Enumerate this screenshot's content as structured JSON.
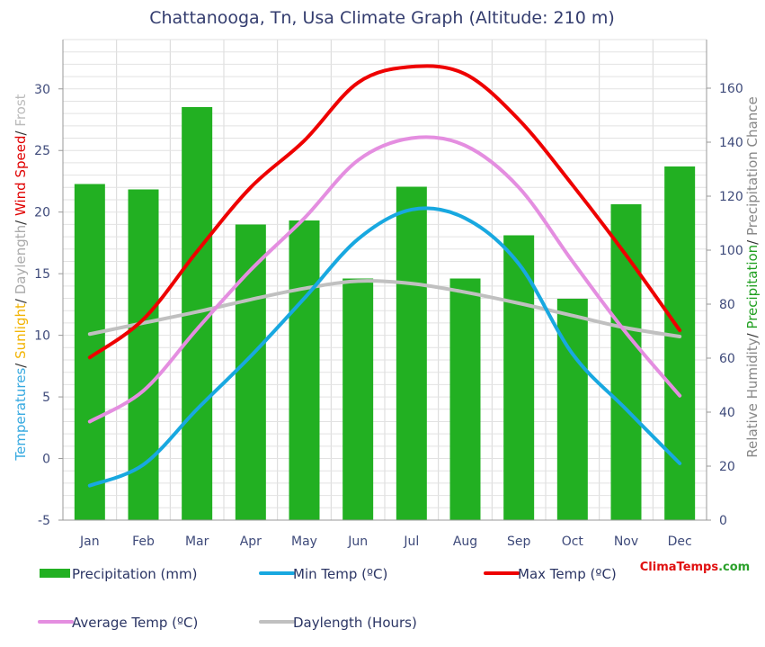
{
  "chart_data": {
    "type": "bar",
    "title": "Chattanooga, Tn, Usa Climate Graph (Altitude: 210 m)",
    "categories": [
      "Jan",
      "Feb",
      "Mar",
      "Apr",
      "May",
      "Jun",
      "Jul",
      "Aug",
      "Sep",
      "Oct",
      "Nov",
      "Dec"
    ],
    "left_axis": {
      "label_parts": [
        {
          "text": "Temperatures",
          "color": "#36a9e0"
        },
        {
          "text": "/ ",
          "color": "#333333"
        },
        {
          "text": "Sunlight",
          "color": "#f2b300"
        },
        {
          "text": "/ ",
          "color": "#333333"
        },
        {
          "text": "Daylength",
          "color": "#aaaaaa"
        },
        {
          "text": "/ ",
          "color": "#333333"
        },
        {
          "text": "Wind Speed",
          "color": "#e00000"
        },
        {
          "text": "/ ",
          "color": "#333333"
        },
        {
          "text": "Frost",
          "color": "#bbbbbb"
        }
      ],
      "ylim": [
        -5,
        34
      ],
      "ticks": [
        "-5",
        "0",
        "5",
        "10",
        "15",
        "20",
        "25",
        "30"
      ]
    },
    "right_axis": {
      "label_parts": [
        {
          "text": "Relative Humidity",
          "color": "#888888"
        },
        {
          "text": "/ ",
          "color": "#333333"
        },
        {
          "text": "Precipitation",
          "color": "#22a022"
        },
        {
          "text": "/ ",
          "color": "#333333"
        },
        {
          "text": "Precipitation Chance",
          "color": "#888888"
        }
      ],
      "ylim": [
        0,
        178
      ],
      "ticks": [
        "0",
        "20",
        "40",
        "60",
        "80",
        "100",
        "120",
        "140",
        "160"
      ]
    },
    "series": [
      {
        "name": "Precipitation (mm)",
        "kind": "bar",
        "axis": "right",
        "color": "#22b022",
        "values": [
          124.5,
          122.5,
          153,
          109.5,
          111,
          89.5,
          123.5,
          89.5,
          105.5,
          82,
          117,
          131
        ]
      },
      {
        "name": "Min Temp (ºC)",
        "kind": "line",
        "axis": "left",
        "color": "#18a8e0",
        "values": [
          -2.2,
          -0.5,
          4.0,
          8.3,
          13.0,
          17.8,
          20.2,
          19.5,
          15.8,
          8.5,
          4.0,
          -0.4
        ]
      },
      {
        "name": "Max Temp (ºC)",
        "kind": "line",
        "axis": "left",
        "color": "#ee0000",
        "values": [
          8.2,
          11.3,
          16.8,
          22.0,
          25.8,
          30.5,
          31.8,
          31.2,
          27.5,
          22.2,
          16.5,
          10.4
        ]
      },
      {
        "name": "Average Temp (ºC)",
        "kind": "line",
        "axis": "left",
        "color": "#e48ee0",
        "values": [
          3.0,
          5.5,
          10.5,
          15.3,
          19.5,
          24.2,
          26.0,
          25.4,
          22.0,
          16.0,
          10.2,
          5.1
        ]
      },
      {
        "name": "Daylength (Hours)",
        "kind": "line",
        "axis": "left",
        "color": "#c0c0c0",
        "values": [
          10.1,
          11.0,
          11.9,
          12.9,
          13.8,
          14.4,
          14.2,
          13.5,
          12.6,
          11.6,
          10.6,
          9.9
        ]
      }
    ],
    "grid": true
  },
  "legend": [
    {
      "label": "Precipitation (mm)",
      "color": "#22b022",
      "shape": "bar"
    },
    {
      "label": "Min Temp (ºC)",
      "color": "#18a8e0",
      "shape": "line"
    },
    {
      "label": "Max Temp (ºC)",
      "color": "#ee0000",
      "shape": "line"
    },
    {
      "label": "Average Temp (ºC)",
      "color": "#e48ee0",
      "shape": "line"
    },
    {
      "label": "Daylength (Hours)",
      "color": "#c0c0c0",
      "shape": "line"
    }
  ],
  "watermark": {
    "parts": [
      {
        "text": "Clima",
        "color": "#e01010"
      },
      {
        "text": "Temps",
        "color": "#e01010"
      },
      {
        "text": ".com",
        "color": "#2aa02a"
      }
    ]
  }
}
